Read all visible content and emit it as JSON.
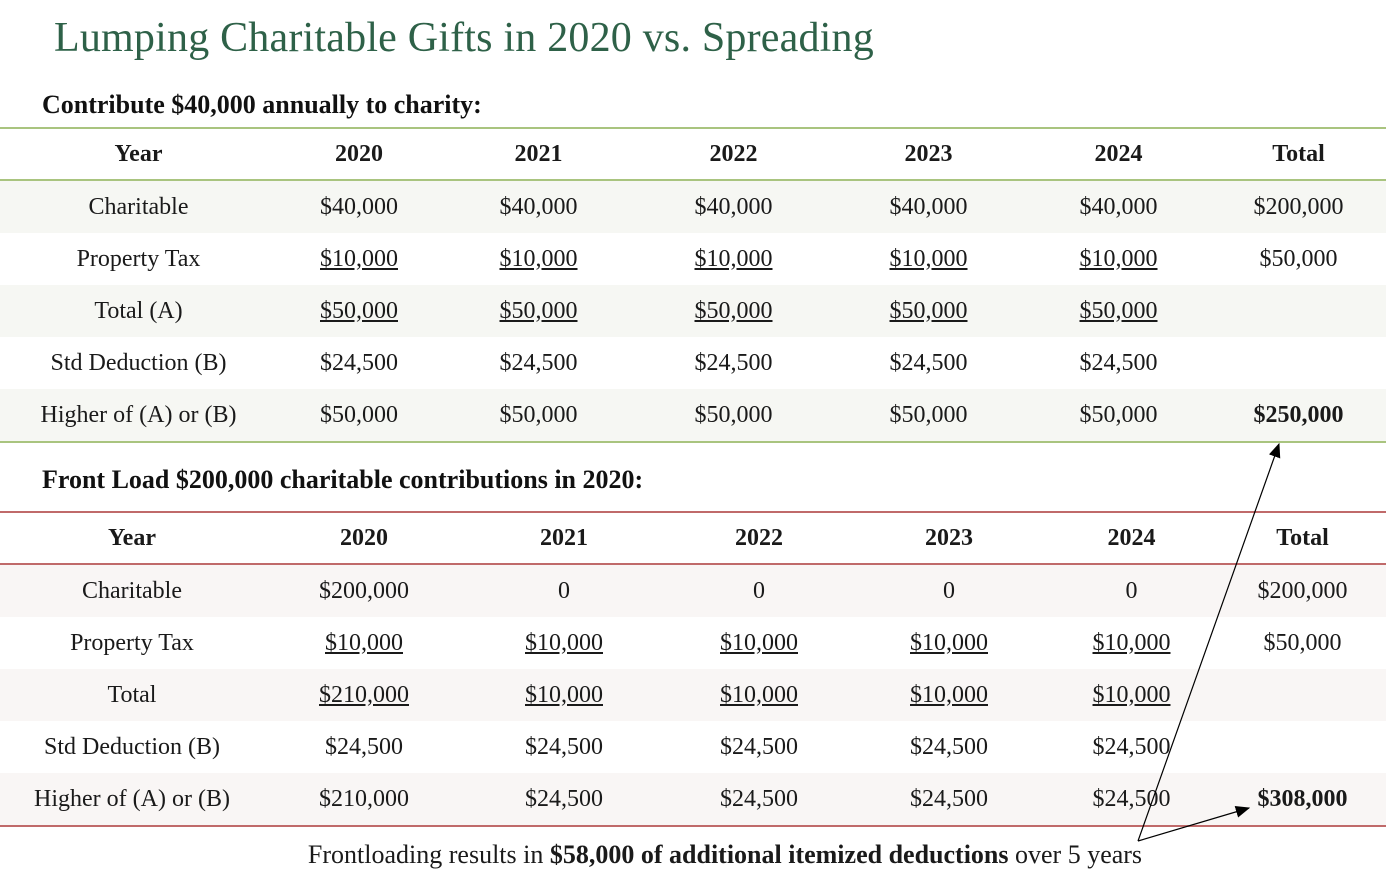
{
  "title": "Lumping Charitable Gifts in 2020 vs. Spreading",
  "section1": {
    "heading": "Contribute $40,000 annually to charity:",
    "header": [
      "Year",
      "2020",
      "2021",
      "2022",
      "2023",
      "2024",
      "Total"
    ],
    "rows": [
      {
        "label": "Charitable",
        "cells": [
          "$40,000",
          "$40,000",
          "$40,000",
          "$40,000",
          "$40,000",
          "$200,000"
        ]
      },
      {
        "label": "Property Tax",
        "cells": [
          "$10,000",
          "$10,000",
          "$10,000",
          "$10,000",
          "$10,000",
          "$50,000"
        ]
      },
      {
        "label": "Total (A)",
        "cells": [
          "$50,000",
          "$50,000",
          "$50,000",
          "$50,000",
          "$50,000",
          ""
        ]
      },
      {
        "label": "Std Deduction (B)",
        "cells": [
          "$24,500",
          "$24,500",
          "$24,500",
          "$24,500",
          "$24,500",
          ""
        ]
      },
      {
        "label": "Higher of (A) or (B)",
        "cells": [
          "$50,000",
          "$50,000",
          "$50,000",
          "$50,000",
          "$50,000",
          "$250,000"
        ]
      }
    ]
  },
  "section2": {
    "heading": "Front Load $200,000 charitable contributions in 2020:",
    "header": [
      "Year",
      "2020",
      "2021",
      "2022",
      "2023",
      "2024",
      "Total"
    ],
    "rows": [
      {
        "label": "Charitable",
        "cells": [
          "$200,000",
          "0",
          "0",
          "0",
          "0",
          "$200,000"
        ]
      },
      {
        "label": "Property Tax",
        "cells": [
          "$10,000",
          "$10,000",
          "$10,000",
          "$10,000",
          "$10,000",
          "$50,000"
        ]
      },
      {
        "label": "Total",
        "cells": [
          "$210,000",
          "$10,000",
          "$10,000",
          "$10,000",
          "$10,000",
          ""
        ]
      },
      {
        "label": "Std Deduction (B)",
        "cells": [
          "$24,500",
          "$24,500",
          "$24,500",
          "$24,500",
          "$24,500",
          ""
        ]
      },
      {
        "label": "Higher of (A) or (B)",
        "cells": [
          "$210,000",
          "$24,500",
          "$24,500",
          "$24,500",
          "$24,500",
          "$308,000"
        ]
      }
    ]
  },
  "footnote": {
    "prefix": "Frontloading results in ",
    "emphasis": "$58,000 of  additional itemized deductions",
    "suffix": " over 5 years"
  }
}
